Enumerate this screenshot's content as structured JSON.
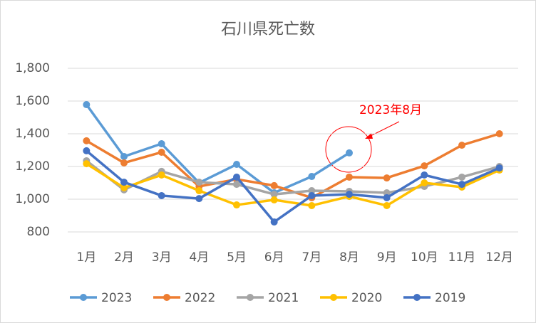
{
  "chart_data": {
    "type": "line",
    "title": "石川県死亡数",
    "categories": [
      "1月",
      "2月",
      "3月",
      "4月",
      "5月",
      "6月",
      "7月",
      "8月",
      "9月",
      "10月",
      "11月",
      "12月"
    ],
    "series": [
      {
        "name": "2023",
        "color": "#5b9bd5",
        "values": [
          1578,
          1261,
          1339,
          1100,
          1213,
          1039,
          1139,
          1283,
          null,
          null,
          null,
          null
        ]
      },
      {
        "name": "2022",
        "color": "#ed7d31",
        "values": [
          1357,
          1222,
          1287,
          1078,
          1122,
          1083,
          1009,
          1135,
          1130,
          1204,
          1330,
          1400
        ]
      },
      {
        "name": "2021",
        "color": "#a5a5a5",
        "values": [
          1235,
          1057,
          1170,
          1104,
          1091,
          1030,
          1052,
          1048,
          1039,
          1078,
          1135,
          1200
        ]
      },
      {
        "name": "2020",
        "color": "#ffc000",
        "values": [
          1217,
          1070,
          1148,
          1052,
          965,
          996,
          961,
          1017,
          961,
          1100,
          1074,
          1178
        ]
      },
      {
        "name": "2019",
        "color": "#4472c4",
        "values": [
          1296,
          1104,
          1022,
          1004,
          1135,
          861,
          1022,
          1030,
          1009,
          1148,
          1091,
          1191
        ]
      }
    ],
    "ylim": [
      800,
      1800
    ],
    "yticks": [
      800,
      {
        "value": 1000,
        "label": "1,000"
      },
      {
        "value": 1200,
        "label": "1,200"
      },
      {
        "value": 1400,
        "label": "1,400"
      },
      {
        "value": 1600,
        "label": "1,600"
      },
      {
        "value": 1800,
        "label": "1,800"
      }
    ],
    "grid": true,
    "legend": "bottom",
    "annotations": [
      {
        "text": "2023年8月"
      }
    ]
  }
}
